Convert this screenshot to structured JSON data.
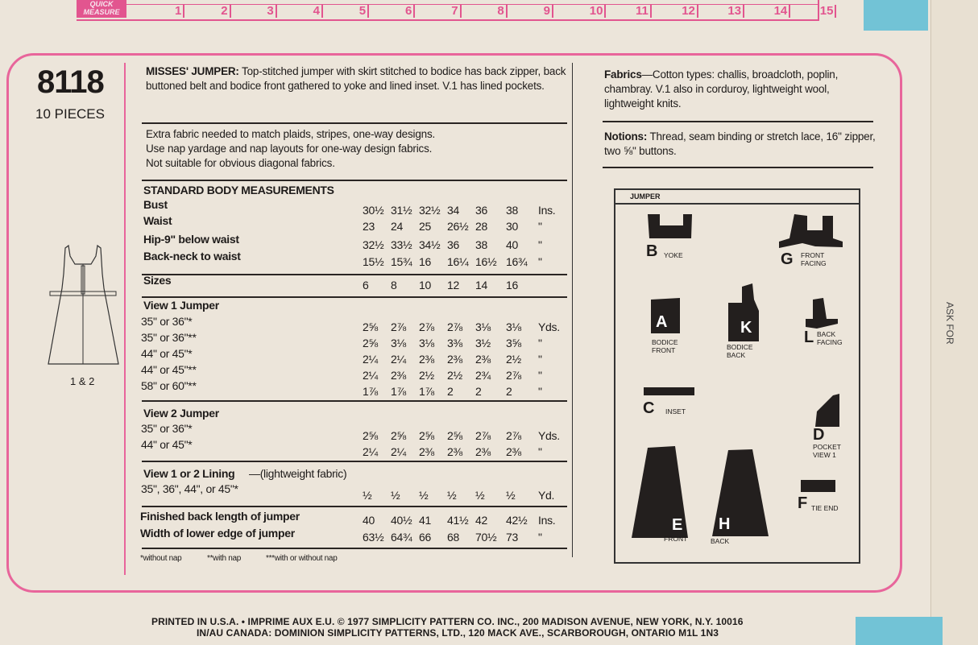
{
  "ruler": {
    "label_top": "QUICK",
    "label_bottom": "MEASURE",
    "numbers": [
      "1",
      "2",
      "3",
      "4",
      "5",
      "6",
      "7",
      "8",
      "9",
      "10",
      "11",
      "12",
      "13",
      "14",
      "15"
    ],
    "color": "#e2558f"
  },
  "header": {
    "pattern_number": "8118",
    "pieces": "10 PIECES",
    "view_label": "1 & 2"
  },
  "description": {
    "title": "MISSES' JUMPER:",
    "text": " Top-stitched jumper with skirt stitched to bodice has back zipper, back buttoned belt and bodice front gathered to yoke and lined inset. V.1 has lined pockets.",
    "notes": [
      "Extra fabric needed to match plaids, stripes, one-way designs.",
      "Use nap yardage and nap layouts for one-way design fabrics.",
      "Not suitable for obvious diagonal fabrics."
    ]
  },
  "table": {
    "measurements_title": "STANDARD BODY MEASUREMENTS",
    "measurements": [
      {
        "label": "Bust",
        "values": [
          "30½",
          "31½",
          "32½",
          "34",
          "36",
          "38"
        ],
        "unit": "Ins."
      },
      {
        "label": "Waist",
        "values": [
          "23",
          "24",
          "25",
          "26½",
          "28",
          "30"
        ],
        "unit": "\""
      },
      {
        "label": "Hip-9\" below waist",
        "values": [
          "32½",
          "33½",
          "34½",
          "36",
          "38",
          "40"
        ],
        "unit": "\""
      },
      {
        "label": "Back-neck to waist",
        "values": [
          "15½",
          "15¾",
          "16",
          "16¼",
          "16½",
          "16¾"
        ],
        "unit": "\""
      }
    ],
    "sizes": {
      "label": "Sizes",
      "values": [
        "6",
        "8",
        "10",
        "12",
        "14",
        "16"
      ]
    },
    "view1": {
      "title": "View 1 Jumper",
      "rows": [
        {
          "label": "35\" or 36\"*",
          "values": [
            "2⅝",
            "2⅞",
            "2⅞",
            "2⅞",
            "3⅛",
            "3⅛"
          ],
          "unit": "Yds."
        },
        {
          "label": "35\" or 36\"**",
          "values": [
            "2⅝",
            "3⅛",
            "3⅛",
            "3⅜",
            "3½",
            "3⅝"
          ],
          "unit": "\""
        },
        {
          "label": "44\" or 45\"*",
          "values": [
            "2¼",
            "2¼",
            "2⅜",
            "2⅜",
            "2⅜",
            "2½"
          ],
          "unit": "\""
        },
        {
          "label": "44\" or 45\"**",
          "values": [
            "2¼",
            "2⅜",
            "2½",
            "2½",
            "2¾",
            "2⅞"
          ],
          "unit": "\""
        },
        {
          "label": "58\" or 60\"**",
          "values": [
            "1⅞",
            "1⅞",
            "1⅞",
            "2",
            "2",
            "2"
          ],
          "unit": "\""
        }
      ]
    },
    "view2": {
      "title": "View 2 Jumper",
      "rows": [
        {
          "label": "35\" or 36\"*",
          "values": [
            "2⅝",
            "2⅝",
            "2⅝",
            "2⅝",
            "2⅞",
            "2⅞"
          ],
          "unit": "Yds."
        },
        {
          "label": "44\" or 45\"*",
          "values": [
            "2¼",
            "2¼",
            "2⅜",
            "2⅜",
            "2⅜",
            "2⅜"
          ],
          "unit": "\""
        }
      ]
    },
    "lining": {
      "title": "View 1 or 2 Lining",
      "title_suffix": "—(lightweight fabric)",
      "rows": [
        {
          "label": "35\", 36\", 44\", or 45\"*",
          "values": [
            "½",
            "½",
            "½",
            "½",
            "½",
            "½"
          ],
          "unit": "Yd."
        }
      ]
    },
    "finished": [
      {
        "label": "Finished back length of jumper",
        "values": [
          "40",
          "40½",
          "41",
          "41½",
          "42",
          "42½"
        ],
        "unit": "Ins."
      },
      {
        "label": "Width of lower edge of jumper",
        "values": [
          "63½",
          "64¾",
          "66",
          "68",
          "70½",
          "73"
        ],
        "unit": "\""
      }
    ],
    "footnotes": [
      "*without nap",
      "**with nap",
      "***with or without nap"
    ]
  },
  "fabrics": {
    "title": "Fabrics",
    "text": "—Cotton types: challis, broadcloth, poplin, chambray. V.1 also in corduroy, lightweight wool, lightweight knits."
  },
  "notions": {
    "title": "Notions:",
    "text": " Thread, seam binding or stretch lace, 16\" zipper, two ⅝\" buttons."
  },
  "layout": {
    "title": "JUMPER",
    "pieces": [
      {
        "letter": "B",
        "name": "YOKE"
      },
      {
        "letter": "G",
        "name": "FRONT FACING"
      },
      {
        "letter": "A",
        "name": "BODICE FRONT"
      },
      {
        "letter": "K",
        "name": "BODICE BACK"
      },
      {
        "letter": "L",
        "name": "BACK FACING"
      },
      {
        "letter": "C",
        "name": "INSET"
      },
      {
        "letter": "D",
        "name": "POCKET VIEW 1"
      },
      {
        "letter": "E",
        "name": "FRONT"
      },
      {
        "letter": "H",
        "name": "BACK"
      },
      {
        "letter": "F",
        "name": "TIE END"
      }
    ]
  },
  "footer": {
    "line1": "PRINTED IN U.S.A. • IMPRIME AUX E.U.   © 1977 SIMPLICITY PATTERN CO. INC., 200 MADISON AVENUE, NEW YORK, N.Y. 10016",
    "line2": "IN/AU CANADA: DOMINION SIMPLICITY PATTERNS, LTD., 120 MACK AVE., SCARBOROUGH, ONTARIO M1L 1N3"
  },
  "edge_text": "ASK FOR",
  "colors": {
    "pink": "#e8659b",
    "paper": "#ece5da",
    "tab_blue": "#72c3d6"
  }
}
